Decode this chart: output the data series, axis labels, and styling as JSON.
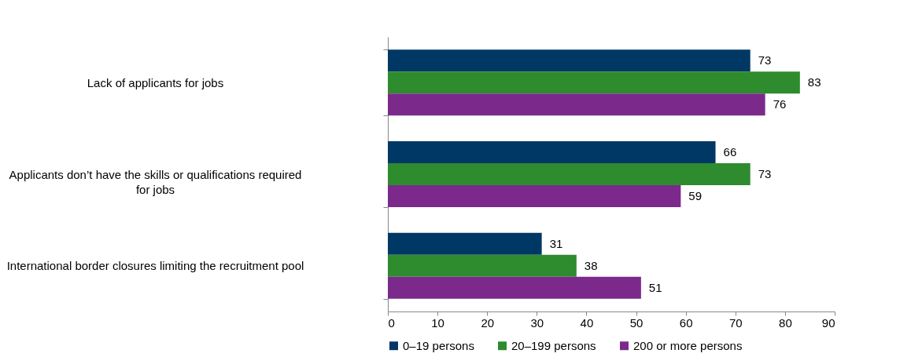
{
  "chart_data": {
    "type": "bar",
    "orientation": "horizontal",
    "categories": [
      "Lack of applicants for jobs",
      "Applicants don’t have the skills or qualifications required for jobs",
      "International border closures limiting the recruitment pool"
    ],
    "series": [
      {
        "name": "0–19 persons",
        "color": "#003865",
        "values": [
          73,
          66,
          31
        ]
      },
      {
        "name": "20–199 persons",
        "color": "#2e8b2e",
        "values": [
          83,
          73,
          38
        ]
      },
      {
        "name": "200 or more persons",
        "color": "#7b2a8c",
        "values": [
          76,
          59,
          51
        ]
      }
    ],
    "xlim": [
      0,
      90
    ],
    "xticks": [
      0,
      10,
      20,
      30,
      40,
      50,
      60,
      70,
      80,
      90
    ],
    "data_labels": true,
    "legend": "bottom",
    "grid": false
  }
}
